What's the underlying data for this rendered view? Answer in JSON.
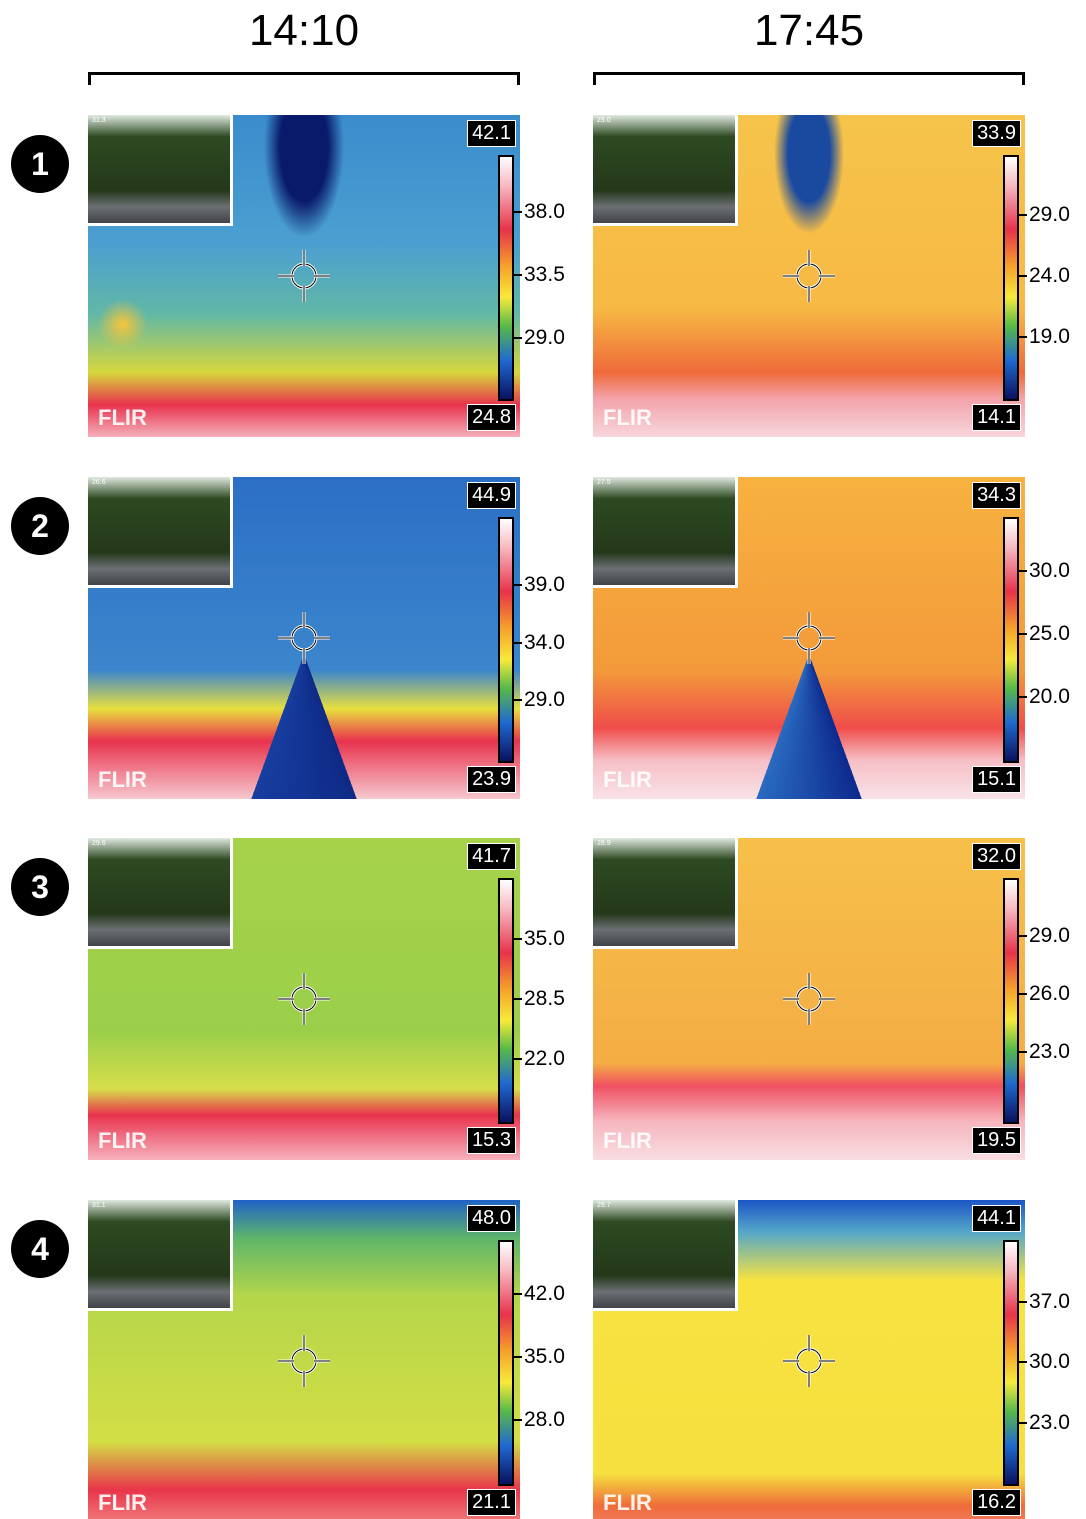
{
  "columns": [
    {
      "title": "14:10"
    },
    {
      "title": "17:45"
    }
  ],
  "logo": "FLIR",
  "rows": [
    {
      "number": "1",
      "panels": [
        {
          "inset": "31.3",
          "max": "42.1",
          "min": "24.8",
          "ticks": [
            "38.0",
            "33.5",
            "29.0"
          ]
        },
        {
          "inset": "29.0",
          "max": "33.9",
          "min": "14.1",
          "ticks": [
            "29.0",
            "24.0",
            "19.0"
          ]
        }
      ]
    },
    {
      "number": "2",
      "panels": [
        {
          "inset": "26.6",
          "max": "44.9",
          "min": "23.9",
          "ticks": [
            "39.0",
            "34.0",
            "29.0"
          ]
        },
        {
          "inset": "27.5",
          "max": "34.3",
          "min": "15.1",
          "ticks": [
            "30.0",
            "25.0",
            "20.0"
          ]
        }
      ]
    },
    {
      "number": "3",
      "panels": [
        {
          "inset": "29.6",
          "max": "41.7",
          "min": "15.3",
          "ticks": [
            "35.0",
            "28.5",
            "22.0"
          ]
        },
        {
          "inset": "28.9",
          "max": "32.0",
          "min": "19.5",
          "ticks": [
            "29.0",
            "26.0",
            "23.0"
          ]
        }
      ]
    },
    {
      "number": "4",
      "panels": [
        {
          "inset": "31.1",
          "max": "48.0",
          "min": "21.1",
          "ticks": [
            "42.0",
            "35.0",
            "28.0"
          ]
        },
        {
          "inset": "29.7",
          "max": "44.1",
          "min": "16.2",
          "ticks": [
            "37.0",
            "30.0",
            "23.0"
          ]
        }
      ]
    }
  ]
}
